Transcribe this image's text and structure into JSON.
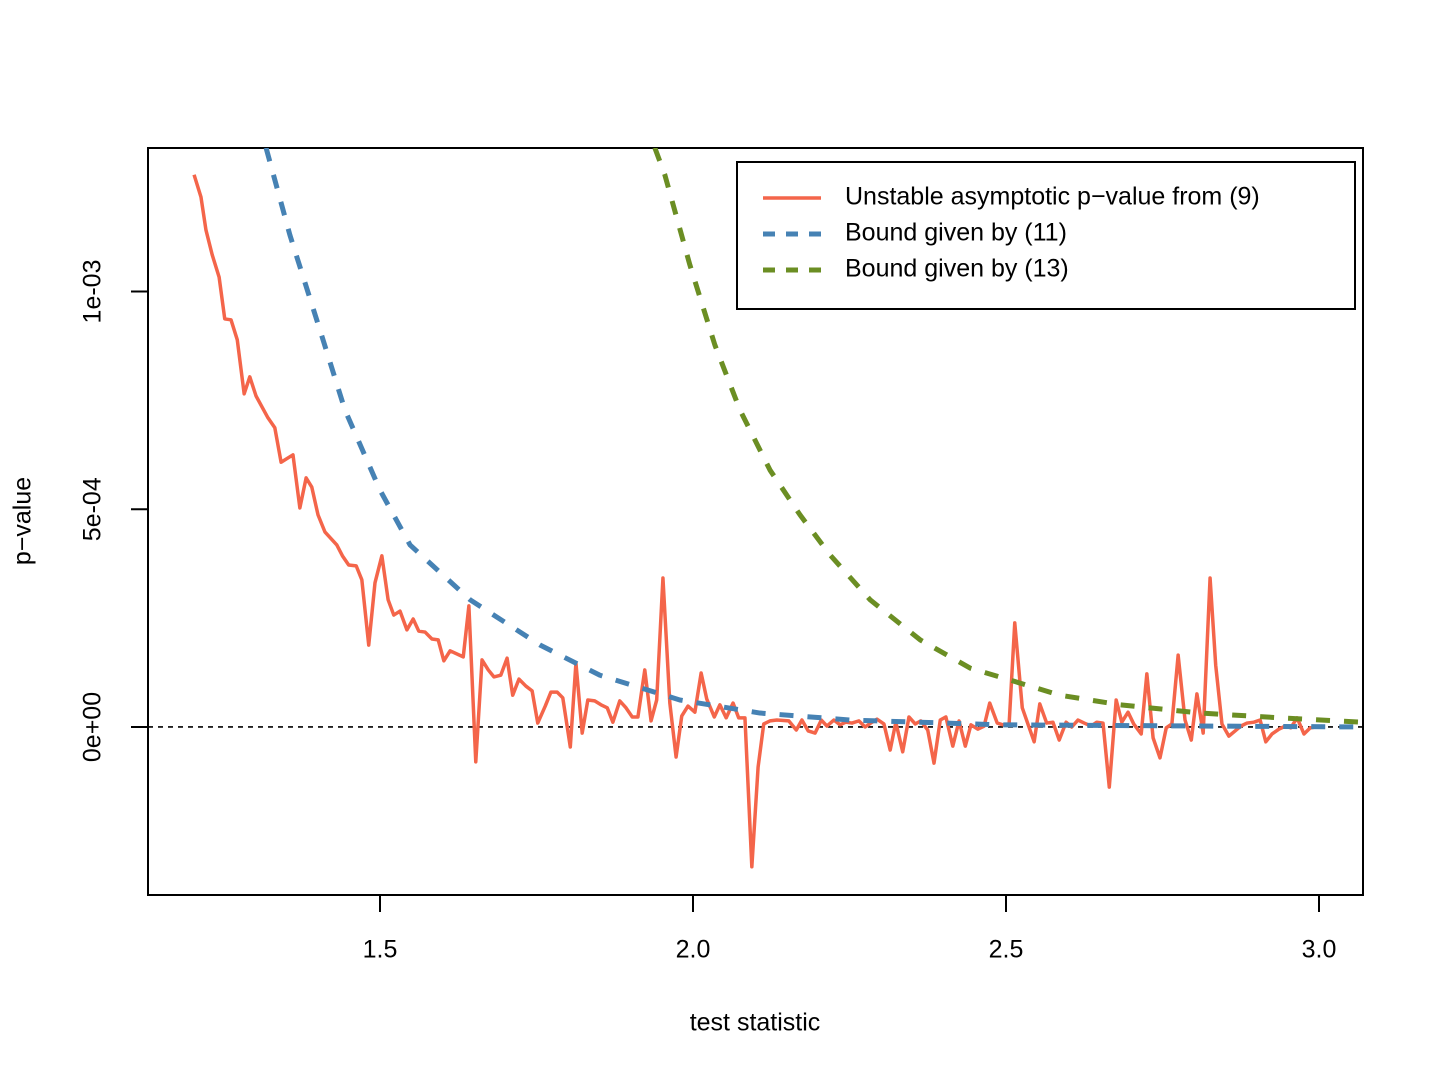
{
  "chart_data": {
    "type": "line",
    "x_label": "test statistic",
    "y_label": "p−value",
    "xlim": [
      1.1294,
      3.0703
    ],
    "ylim": [
      -0.0003858,
      0.0013295
    ],
    "xticks": [
      1.5,
      {
        "value": 2,
        "label": "2.0"
      },
      2.5,
      {
        "value": 3,
        "label": "3.0"
      }
    ],
    "yticks": [
      {
        "value": 0,
        "label": "0e+00"
      },
      {
        "value": 0.0005,
        "label": "5e-04"
      },
      {
        "value": 0.001,
        "label": "1e-03"
      }
    ],
    "reference_line": 0,
    "legend": "topright",
    "series": [
      {
        "name": "Unstable asymptotic p−value from (9)",
        "color": "#f4654a",
        "linestyle": "solid",
        "x": [
          1.203,
          1.214,
          1.222,
          1.232,
          1.243,
          1.252,
          1.262,
          1.272,
          1.283,
          1.292,
          1.302,
          1.321,
          1.332,
          1.342,
          1.361,
          1.372,
          1.382,
          1.391,
          1.401,
          1.412,
          1.431,
          1.44,
          1.45,
          1.462,
          1.471,
          1.482,
          1.492,
          1.503,
          1.513,
          1.522,
          1.532,
          1.543,
          1.553,
          1.562,
          1.572,
          1.583,
          1.593,
          1.602,
          1.612,
          1.633,
          1.642,
          1.653,
          1.663,
          1.673,
          1.682,
          1.693,
          1.703,
          1.712,
          1.722,
          1.733,
          1.743,
          1.752,
          1.764,
          1.773,
          1.783,
          1.792,
          1.804,
          1.813,
          1.823,
          1.832,
          1.843,
          1.853,
          1.863,
          1.872,
          1.883,
          1.893,
          1.903,
          1.912,
          1.923,
          1.933,
          1.942,
          1.952,
          1.963,
          1.973,
          1.982,
          1.992,
          2.003,
          2.013,
          2.022,
          2.034,
          2.043,
          2.053,
          2.064,
          2.073,
          2.083,
          2.094,
          2.104,
          2.113,
          2.123,
          2.134,
          2.153,
          2.165,
          2.174,
          2.184,
          2.195,
          2.205,
          2.214,
          2.225,
          2.235,
          2.244,
          2.254,
          2.265,
          2.275,
          2.284,
          2.294,
          2.305,
          2.315,
          2.324,
          2.335,
          2.345,
          2.355,
          2.364,
          2.375,
          2.385,
          2.395,
          2.404,
          2.415,
          2.425,
          2.435,
          2.444,
          2.455,
          2.465,
          2.474,
          2.486,
          2.495,
          2.505,
          2.514,
          2.526,
          2.535,
          2.545,
          2.554,
          2.565,
          2.575,
          2.585,
          2.596,
          2.605,
          2.615,
          2.625,
          2.636,
          2.645,
          2.655,
          2.665,
          2.676,
          2.685,
          2.695,
          2.704,
          2.716,
          2.725,
          2.735,
          2.746,
          2.756,
          2.765,
          2.775,
          2.786,
          2.796,
          2.805,
          2.815,
          2.826,
          2.835,
          2.845,
          2.856,
          2.866,
          2.875,
          2.885,
          2.896,
          2.906,
          2.915,
          2.925,
          2.936,
          2.946,
          2.955,
          2.965,
          2.976,
          2.986,
          2.995,
          3.005
        ],
        "values": [
          0.001268,
          0.001217,
          0.001141,
          0.001084,
          0.001033,
          0.000937,
          0.000935,
          0.000889,
          0.000765,
          0.000804,
          0.00076,
          0.00071,
          0.000687,
          0.000608,
          0.000625,
          0.000503,
          0.000572,
          0.000551,
          0.000487,
          0.000448,
          0.000418,
          0.000393,
          0.000372,
          0.00037,
          0.000338,
          0.000188,
          0.000331,
          0.000393,
          0.000292,
          0.000257,
          0.000266,
          0.000223,
          0.000248,
          0.00022,
          0.000218,
          0.000202,
          0.0002,
          0.000152,
          0.000175,
          0.000161,
          0.000278,
          -8e-05,
          0.000154,
          0.000131,
          0.000115,
          0.000119,
          0.000158,
          7.3e-05,
          0.00011,
          9.4e-05,
          8.3e-05,
          9e-06,
          4.8e-05,
          8e-05,
          8e-05,
          6.7e-05,
          -4.6e-05,
          0.000147,
          -1.4e-05,
          6.2e-05,
          6e-05,
          5.1e-05,
          4.4e-05,
          1.1e-05,
          6e-05,
          4.4e-05,
          2.3e-05,
          2.3e-05,
          0.000131,
          1.4e-05,
          6.2e-05,
          0.000342,
          5.5e-05,
          -6.9e-05,
          2.5e-05,
          4.8e-05,
          3.4e-05,
          0.000124,
          6.4e-05,
          2.3e-05,
          5.1e-05,
          2.1e-05,
          5.5e-05,
          2.1e-05,
          2.1e-05,
          -0.000321,
          -9.2e-05,
          7e-06,
          1.4e-05,
          1.6e-05,
          1.4e-05,
          -7e-06,
          1.6e-05,
          -9e-06,
          -1.4e-05,
          1.6e-05,
          2e-06,
          1.6e-05,
          5e-06,
          1.1e-05,
          9e-06,
          1.4e-05,
          0,
          9e-06,
          1.8e-05,
          7e-06,
          -5.3e-05,
          1.1e-05,
          -5.7e-05,
          2.3e-05,
          7e-06,
          1.4e-05,
          -7e-06,
          -8.3e-05,
          1.6e-05,
          2.3e-05,
          -4.4e-05,
          1.4e-05,
          -4.4e-05,
          5e-06,
          -5e-06,
          2e-06,
          5.5e-05,
          9e-06,
          5e-06,
          7e-06,
          0.000239,
          4.4e-05,
          7e-06,
          -3.4e-05,
          5.3e-05,
          9e-06,
          1.1e-05,
          -3e-05,
          1.1e-05,
          0,
          1.6e-05,
          9e-06,
          2e-06,
          1.1e-05,
          9e-06,
          -0.000138,
          6.2e-05,
          1.1e-05,
          3.4e-05,
          7e-06,
          -1.6e-05,
          0.000122,
          -2.5e-05,
          -7.1e-05,
          -2e-06,
          7e-06,
          0.000165,
          1.6e-05,
          -3e-05,
          7.6e-05,
          -1.4e-05,
          0.000342,
          0.000142,
          7e-06,
          -2.1e-05,
          -9e-06,
          2e-06,
          9e-06,
          1.1e-05,
          1.6e-05,
          -3.4e-05,
          -1.6e-05,
          -5e-06,
          2e-06,
          -2e-06,
          2.1e-05,
          -1.6e-05,
          -2e-06,
          0,
          2e-06
        ]
      },
      {
        "name": "Bound given by (11)",
        "color": "#4682b4",
        "linestyle": "dashed",
        "x": [
          1.318,
          1.356,
          1.404,
          1.444,
          1.5,
          1.548,
          1.644,
          1.756,
          1.851,
          1.979,
          2.107,
          2.251,
          2.49,
          3.07
        ],
        "values": [
          0.00133,
          0.00113,
          0.000912,
          0.000728,
          0.000544,
          0.000418,
          0.000292,
          0.000188,
          0.000119,
          6.2e-05,
          3.2e-05,
          1.6e-05,
          5e-06,
          0
        ]
      },
      {
        "name": "Bound given by (13)",
        "color": "#6b8e23",
        "linestyle": "dashed",
        "x": [
          1.939,
          1.955,
          1.995,
          2.035,
          2.075,
          2.123,
          2.171,
          2.219,
          2.283,
          2.363,
          2.443,
          2.506,
          2.586,
          2.682,
          2.81,
          2.938,
          3.07
        ],
        "values": [
          0.00133,
          0.001268,
          0.001061,
          0.000877,
          0.000728,
          0.00059,
          0.000487,
          0.000395,
          0.000292,
          0.0002,
          0.000135,
          0.000108,
          7.3e-05,
          5.1e-05,
          3.2e-05,
          2.1e-05,
          1.1e-05
        ]
      }
    ]
  }
}
